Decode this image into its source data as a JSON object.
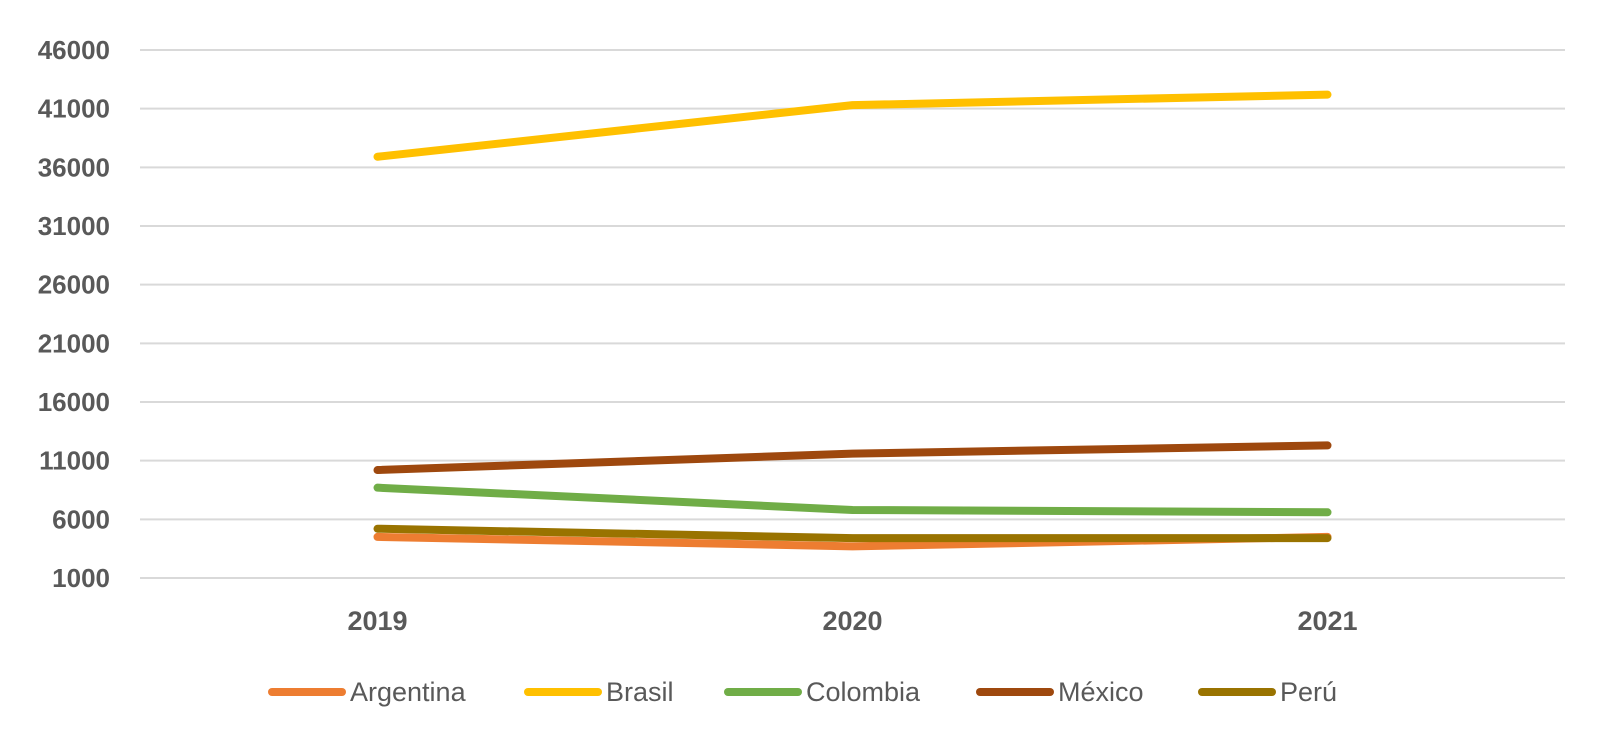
{
  "chart_data": {
    "type": "line",
    "title": "",
    "xlabel": "",
    "ylabel": "",
    "categories": [
      "2019",
      "2020",
      "2021"
    ],
    "yticks": [
      "46000",
      "41000",
      "36000",
      "31000",
      "26000",
      "21000",
      "16000",
      "11000",
      "6000",
      "1000"
    ],
    "ylim": [
      1000,
      46000
    ],
    "grid": true,
    "legend_position": "bottom",
    "series": [
      {
        "name": "Argentina",
        "color": "#ED7D31",
        "values": [
          4500,
          3700,
          4500
        ]
      },
      {
        "name": "Brasil",
        "color": "#FFC000",
        "values": [
          36900,
          41300,
          42200
        ]
      },
      {
        "name": "Colombia",
        "color": "#70AD47",
        "values": [
          8700,
          6800,
          6600
        ]
      },
      {
        "name": "México",
        "color": "#9E480E",
        "values": [
          10200,
          11600,
          12300
        ]
      },
      {
        "name": "Perú",
        "color": "#997300",
        "values": [
          5200,
          4400,
          4400
        ]
      }
    ]
  }
}
